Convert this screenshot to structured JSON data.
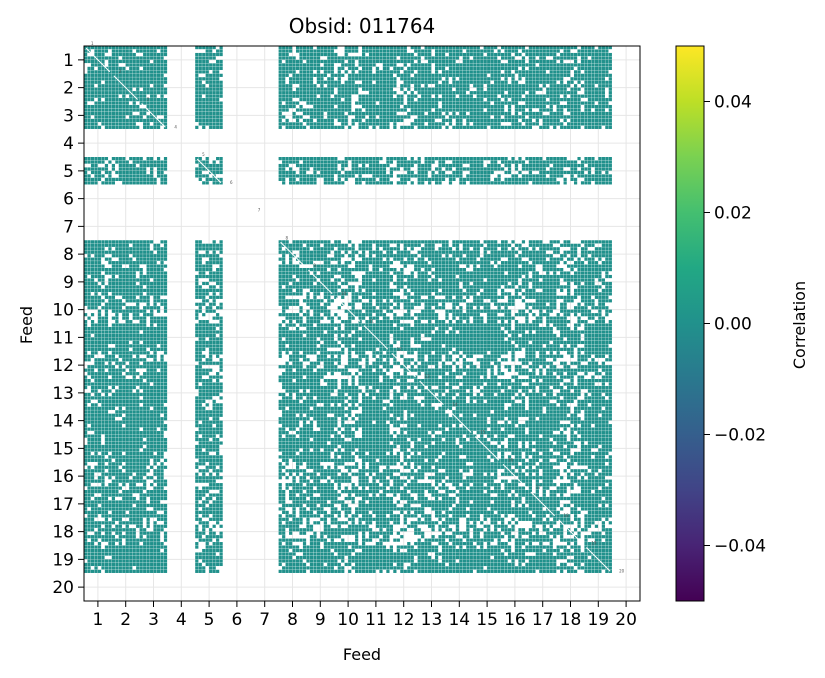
{
  "chart_data": {
    "type": "heatmap",
    "title": "Obsid: 011764",
    "xlabel": "Feed",
    "ylabel": "Feed",
    "feeds": [
      1,
      2,
      3,
      4,
      5,
      6,
      7,
      8,
      9,
      10,
      11,
      12,
      13,
      14,
      15,
      16,
      17,
      18,
      19,
      20
    ],
    "x_ticks": [
      "1",
      "2",
      "3",
      "4",
      "5",
      "6",
      "7",
      "8",
      "9",
      "10",
      "11",
      "12",
      "13",
      "14",
      "15",
      "16",
      "17",
      "18",
      "19",
      "20"
    ],
    "y_ticks": [
      "1",
      "2",
      "3",
      "4",
      "5",
      "6",
      "7",
      "8",
      "9",
      "10",
      "11",
      "12",
      "13",
      "14",
      "15",
      "16",
      "17",
      "18",
      "19",
      "20"
    ],
    "active_feeds": [
      1,
      2,
      3,
      5,
      8,
      9,
      10,
      11,
      12,
      13,
      14,
      15,
      16,
      17,
      18,
      19
    ],
    "empty_feeds": [
      4,
      6,
      7,
      20
    ],
    "feed_coverage": {
      "1": 0.7,
      "2": 0.8,
      "3": 0.75,
      "5": 0.6,
      "8": 0.6,
      "9": 0.7,
      "10": 0.35,
      "11": 0.8,
      "12": 0.45,
      "13": 0.7,
      "14": 0.7,
      "15": 0.75,
      "16": 0.5,
      "17": 0.7,
      "18": 0.35,
      "19": 0.8
    },
    "cell_value": 0.0,
    "cell_color": "#21918c",
    "diagonal_labels": [
      "1",
      "2",
      "3",
      "4",
      "5",
      "6",
      "7",
      "8",
      "9",
      "10",
      "11",
      "12",
      "13",
      "14",
      "15",
      "16",
      "17",
      "18",
      "19",
      "20"
    ],
    "colorbar": {
      "label": "Correlation",
      "min": -0.05,
      "max": 0.05,
      "ticks": [
        0.04,
        0.02,
        0.0,
        -0.02,
        -0.04
      ],
      "tick_labels": [
        "0.04",
        "0.02",
        "0.00",
        "−0.02",
        "−0.04"
      ],
      "colormap": "viridis"
    }
  }
}
